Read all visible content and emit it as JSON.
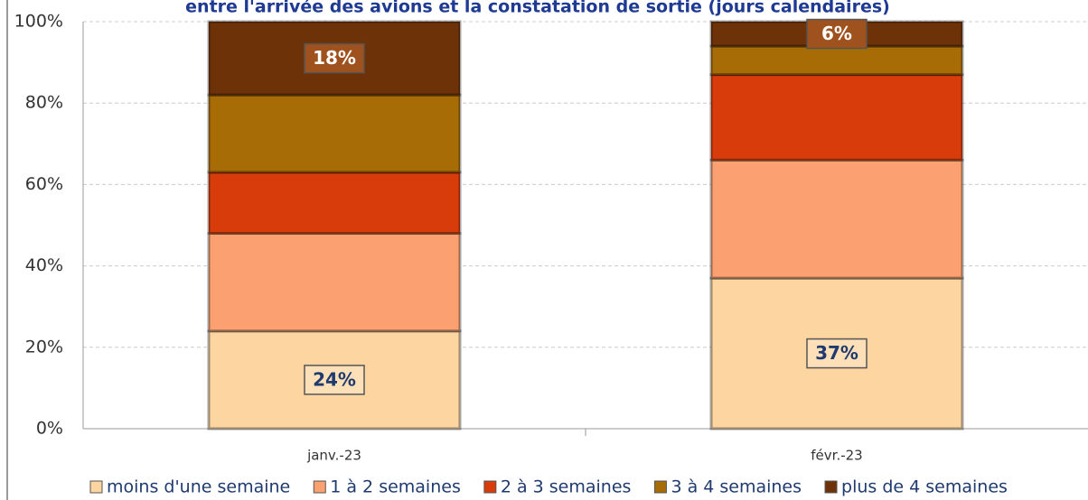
{
  "chart_data": {
    "type": "stacked_bar_100",
    "title": "entre l'arrivée des avions et la constatation de sortie (jours calendaires)",
    "categories": [
      "janv.-23",
      "févr.-23"
    ],
    "series": [
      {
        "name": "moins d'une semaine",
        "color": "#fdd5a0",
        "values": [
          24,
          37
        ],
        "value_labels": [
          "24%",
          "37%"
        ]
      },
      {
        "name": "1 à 2 semaines",
        "color": "#fba070",
        "values": [
          24,
          29
        ]
      },
      {
        "name": "2 à 3 semaines",
        "color": "#d83c0a",
        "values": [
          15,
          21
        ]
      },
      {
        "name": "3 à 4 semaines",
        "color": "#a86c06",
        "values": [
          19,
          7
        ]
      },
      {
        "name": "plus de 4 semaines",
        "color": "#6e3208",
        "values": [
          18,
          6
        ],
        "value_labels": [
          "18%",
          "6%"
        ]
      }
    ],
    "ylim": [
      0,
      100
    ],
    "yticks": [
      {
        "value": 0,
        "label": "0%"
      },
      {
        "value": 20,
        "label": "20%"
      },
      {
        "value": 40,
        "label": "40%"
      },
      {
        "value": 60,
        "label": "60%"
      },
      {
        "value": 80,
        "label": "80%"
      },
      {
        "value": 100,
        "label": "100%"
      }
    ],
    "grid": true,
    "legend": "bottom"
  }
}
